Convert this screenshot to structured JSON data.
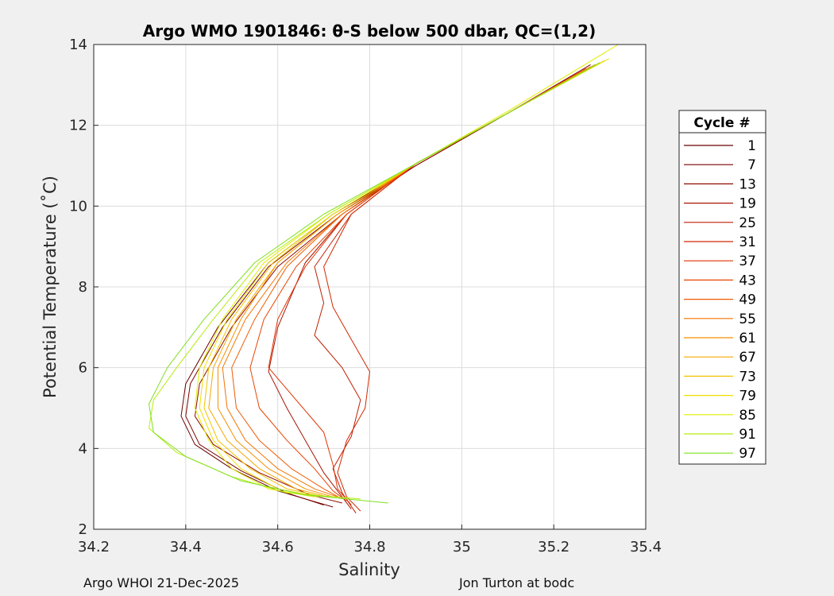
{
  "chart_data": {
    "type": "line",
    "title": "Argo WMO 1901846: θ-S below 500 dbar,  QC=(1,2)",
    "xlabel": "Salinity",
    "ylabel": "Potential Temperature (˚C)",
    "xlim": [
      34.2,
      35.4
    ],
    "ylim": [
      2,
      14
    ],
    "xticks": [
      "34.2",
      "34.4",
      "34.6",
      "34.8",
      "35",
      "35.2",
      "35.4"
    ],
    "yticks": [
      "2",
      "4",
      "6",
      "8",
      "10",
      "12",
      "14"
    ],
    "grid": true,
    "legend": {
      "title": "Cycle #",
      "placement": "right"
    },
    "series": [
      {
        "name": "1",
        "color": "#6b0000",
        "points": [
          [
            35.29,
            13.5
          ],
          [
            35.1,
            12.3
          ],
          [
            34.9,
            11.0
          ],
          [
            34.72,
            9.8
          ],
          [
            34.58,
            8.6
          ],
          [
            34.47,
            7.0
          ],
          [
            34.4,
            5.6
          ],
          [
            34.39,
            4.8
          ],
          [
            34.42,
            4.1
          ],
          [
            34.5,
            3.5
          ],
          [
            34.6,
            2.95
          ],
          [
            34.72,
            2.55
          ]
        ]
      },
      {
        "name": "7",
        "color": "#7a0000",
        "points": [
          [
            35.28,
            13.5
          ],
          [
            35.1,
            12.3
          ],
          [
            34.9,
            11.0
          ],
          [
            34.73,
            9.8
          ],
          [
            34.58,
            8.5
          ],
          [
            34.48,
            7.0
          ],
          [
            34.41,
            5.6
          ],
          [
            34.4,
            4.8
          ],
          [
            34.43,
            4.1
          ],
          [
            34.52,
            3.45
          ],
          [
            34.62,
            2.9
          ],
          [
            34.7,
            2.6
          ]
        ]
      },
      {
        "name": "13",
        "color": "#8f0a00",
        "points": [
          [
            35.28,
            13.45
          ],
          [
            35.1,
            12.3
          ],
          [
            34.9,
            11.0
          ],
          [
            34.74,
            9.8
          ],
          [
            34.6,
            8.5
          ],
          [
            34.5,
            7.0
          ],
          [
            34.43,
            5.6
          ],
          [
            34.42,
            4.8
          ],
          [
            34.46,
            4.1
          ],
          [
            34.56,
            3.4
          ],
          [
            34.67,
            2.85
          ],
          [
            34.74,
            2.65
          ]
        ]
      },
      {
        "name": "19",
        "color": "#a81400",
        "points": [
          [
            35.27,
            13.4
          ],
          [
            35.1,
            12.3
          ],
          [
            34.9,
            11.05
          ],
          [
            34.75,
            9.8
          ],
          [
            34.66,
            8.6
          ],
          [
            34.6,
            7.0
          ],
          [
            34.58,
            5.9
          ],
          [
            34.62,
            5.0
          ],
          [
            34.66,
            4.2
          ],
          [
            34.7,
            3.4
          ],
          [
            34.74,
            2.8
          ],
          [
            34.76,
            2.5
          ]
        ]
      },
      {
        "name": "25",
        "color": "#c01e00",
        "points": [
          [
            35.27,
            13.4
          ],
          [
            35.1,
            12.3
          ],
          [
            34.9,
            11.05
          ],
          [
            34.76,
            9.8
          ],
          [
            34.68,
            8.5
          ],
          [
            34.7,
            7.6
          ],
          [
            34.68,
            6.8
          ],
          [
            34.74,
            6.0
          ],
          [
            34.78,
            5.2
          ],
          [
            34.76,
            4.3
          ],
          [
            34.72,
            3.5
          ],
          [
            34.74,
            2.9
          ],
          [
            34.77,
            2.4
          ]
        ]
      },
      {
        "name": "31",
        "color": "#d22800",
        "points": [
          [
            35.27,
            13.4
          ],
          [
            35.1,
            12.3
          ],
          [
            34.9,
            11.05
          ],
          [
            34.76,
            9.8
          ],
          [
            34.7,
            8.5
          ],
          [
            34.72,
            7.5
          ],
          [
            34.76,
            6.7
          ],
          [
            34.8,
            5.9
          ],
          [
            34.79,
            5.0
          ],
          [
            34.75,
            4.2
          ],
          [
            34.73,
            3.4
          ],
          [
            34.75,
            2.8
          ],
          [
            34.78,
            2.45
          ]
        ]
      },
      {
        "name": "37",
        "color": "#e03200",
        "points": [
          [
            35.27,
            13.4
          ],
          [
            35.1,
            12.3
          ],
          [
            34.9,
            11.05
          ],
          [
            34.75,
            9.8
          ],
          [
            34.66,
            8.5
          ],
          [
            34.6,
            7.2
          ],
          [
            34.58,
            6.0
          ],
          [
            34.64,
            5.2
          ],
          [
            34.7,
            4.4
          ],
          [
            34.72,
            3.6
          ],
          [
            34.73,
            3.0
          ],
          [
            34.76,
            2.6
          ]
        ]
      },
      {
        "name": "43",
        "color": "#ea4200",
        "points": [
          [
            35.27,
            13.4
          ],
          [
            35.1,
            12.3
          ],
          [
            34.9,
            11.05
          ],
          [
            34.75,
            9.8
          ],
          [
            34.64,
            8.5
          ],
          [
            34.57,
            7.2
          ],
          [
            34.54,
            6.0
          ],
          [
            34.56,
            5.0
          ],
          [
            34.62,
            4.2
          ],
          [
            34.68,
            3.5
          ],
          [
            34.72,
            2.95
          ],
          [
            34.75,
            2.7
          ]
        ]
      },
      {
        "name": "49",
        "color": "#f05a00",
        "points": [
          [
            35.28,
            13.45
          ],
          [
            35.1,
            12.3
          ],
          [
            34.9,
            11.05
          ],
          [
            34.74,
            9.8
          ],
          [
            34.62,
            8.5
          ],
          [
            34.55,
            7.2
          ],
          [
            34.5,
            6.0
          ],
          [
            34.51,
            5.0
          ],
          [
            34.56,
            4.2
          ],
          [
            34.63,
            3.5
          ],
          [
            34.7,
            3.0
          ],
          [
            34.74,
            2.75
          ]
        ]
      },
      {
        "name": "55",
        "color": "#f57300",
        "points": [
          [
            35.28,
            13.45
          ],
          [
            35.1,
            12.3
          ],
          [
            34.9,
            11.05
          ],
          [
            34.74,
            9.8
          ],
          [
            34.62,
            8.6
          ],
          [
            34.53,
            7.2
          ],
          [
            34.48,
            6.0
          ],
          [
            34.49,
            5.0
          ],
          [
            34.53,
            4.2
          ],
          [
            34.6,
            3.5
          ],
          [
            34.68,
            3.0
          ],
          [
            34.73,
            2.8
          ]
        ]
      },
      {
        "name": "61",
        "color": "#f78f00",
        "points": [
          [
            35.29,
            13.5
          ],
          [
            35.1,
            12.3
          ],
          [
            34.9,
            11.05
          ],
          [
            34.73,
            9.8
          ],
          [
            34.6,
            8.6
          ],
          [
            34.52,
            7.2
          ],
          [
            34.47,
            6.0
          ],
          [
            34.47,
            5.0
          ],
          [
            34.51,
            4.2
          ],
          [
            34.58,
            3.5
          ],
          [
            34.66,
            3.0
          ],
          [
            34.72,
            2.8
          ]
        ]
      },
      {
        "name": "67",
        "color": "#f5a800",
        "points": [
          [
            35.3,
            13.55
          ],
          [
            35.1,
            12.3
          ],
          [
            34.9,
            11.05
          ],
          [
            34.73,
            9.8
          ],
          [
            34.6,
            8.6
          ],
          [
            34.51,
            7.2
          ],
          [
            34.46,
            6.0
          ],
          [
            34.45,
            5.0
          ],
          [
            34.49,
            4.2
          ],
          [
            34.56,
            3.5
          ],
          [
            34.64,
            3.0
          ],
          [
            34.71,
            2.8
          ]
        ]
      },
      {
        "name": "73",
        "color": "#f2c400",
        "points": [
          [
            35.31,
            13.6
          ],
          [
            35.1,
            12.3
          ],
          [
            34.9,
            11.05
          ],
          [
            34.72,
            9.8
          ],
          [
            34.59,
            8.6
          ],
          [
            34.5,
            7.2
          ],
          [
            34.45,
            6.0
          ],
          [
            34.44,
            5.0
          ],
          [
            34.47,
            4.2
          ],
          [
            34.54,
            3.5
          ],
          [
            34.62,
            3.0
          ],
          [
            34.7,
            2.8
          ]
        ]
      },
      {
        "name": "79",
        "color": "#eee000",
        "points": [
          [
            35.32,
            13.65
          ],
          [
            35.1,
            12.3
          ],
          [
            34.9,
            11.05
          ],
          [
            34.72,
            9.8
          ],
          [
            34.58,
            8.6
          ],
          [
            34.49,
            7.2
          ],
          [
            34.44,
            6.0
          ],
          [
            34.43,
            5.0
          ],
          [
            34.46,
            4.2
          ],
          [
            34.52,
            3.5
          ],
          [
            34.6,
            3.0
          ],
          [
            34.69,
            2.8
          ]
        ]
      },
      {
        "name": "85",
        "color": "#e0ee00",
        "points": [
          [
            35.34,
            14.0
          ],
          [
            35.1,
            12.35
          ],
          [
            34.9,
            11.05
          ],
          [
            34.71,
            9.8
          ],
          [
            34.57,
            8.6
          ],
          [
            34.48,
            7.2
          ],
          [
            34.43,
            6.0
          ],
          [
            34.42,
            5.0
          ],
          [
            34.45,
            4.2
          ],
          [
            34.5,
            3.5
          ],
          [
            34.58,
            3.0
          ],
          [
            34.68,
            2.8
          ]
        ]
      },
      {
        "name": "91",
        "color": "#b8ec10",
        "points": [
          [
            35.3,
            13.55
          ],
          [
            35.1,
            12.3
          ],
          [
            34.9,
            11.05
          ],
          [
            34.71,
            9.8
          ],
          [
            34.56,
            8.6
          ],
          [
            34.46,
            7.2
          ],
          [
            34.38,
            6.0
          ],
          [
            34.33,
            5.2
          ],
          [
            34.32,
            4.5
          ],
          [
            34.38,
            3.9
          ],
          [
            34.5,
            3.3
          ],
          [
            34.62,
            2.9
          ],
          [
            34.78,
            2.75
          ]
        ]
      },
      {
        "name": "97",
        "color": "#80e020",
        "points": [
          [
            35.3,
            13.55
          ],
          [
            35.1,
            12.3
          ],
          [
            34.9,
            11.05
          ],
          [
            34.7,
            9.8
          ],
          [
            34.55,
            8.6
          ],
          [
            34.44,
            7.2
          ],
          [
            34.36,
            6.0
          ],
          [
            34.32,
            5.1
          ],
          [
            34.33,
            4.4
          ],
          [
            34.4,
            3.8
          ],
          [
            34.52,
            3.2
          ],
          [
            34.66,
            2.85
          ],
          [
            34.84,
            2.65
          ]
        ]
      }
    ]
  },
  "footer": {
    "left": "Argo WHOI 21-Dec-2025",
    "right": "Jon Turton at bodc"
  }
}
